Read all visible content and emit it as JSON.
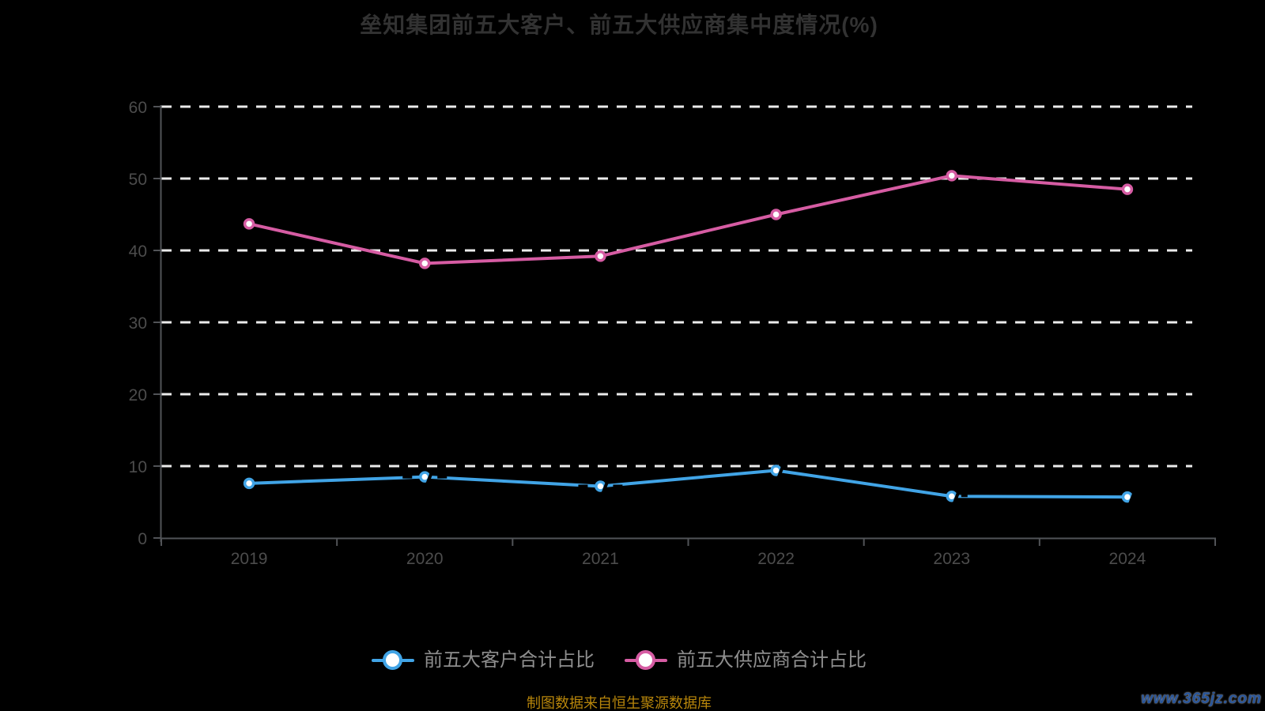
{
  "title": "垒知集团前五大客户、前五大供应商集中度情况(%)",
  "source_note": "制图数据来自恒生聚源数据库",
  "watermark": "www.365jz.com",
  "colors": {
    "background": "#000000",
    "title": "#323232",
    "axis_line": "#515357",
    "axis_label": "#4c4c4c",
    "gridline": "#ebebeb",
    "legend_text": "#8e8e8e",
    "marker_fill": "#ffffff",
    "source_note_color": "#b8860b",
    "watermark_color": "#26549b",
    "clients_series": "#41a4e6",
    "suppliers_series": "#d65ca3"
  },
  "chart_data": {
    "type": "line",
    "title": "垒知集团前五大客户、前五大供应商集中度情况(%)",
    "categories": [
      "2019",
      "2020",
      "2021",
      "2022",
      "2023",
      "2024"
    ],
    "series": [
      {
        "name": "前五大客户合计占比",
        "color": "#41a4e6",
        "values": [
          7.6,
          8.5,
          7.2,
          9.4,
          5.8,
          5.7
        ]
      },
      {
        "name": "前五大供应商合计占比",
        "color": "#d65ca3",
        "values": [
          43.7,
          38.2,
          39.2,
          45.0,
          50.4,
          48.5
        ]
      }
    ],
    "xlabel": "",
    "ylabel": "",
    "ylim": [
      0,
      60
    ],
    "ytick_step": 10,
    "grid": "horizontal-dashed",
    "legend_position": "bottom",
    "marker": "circle-white-fill"
  }
}
